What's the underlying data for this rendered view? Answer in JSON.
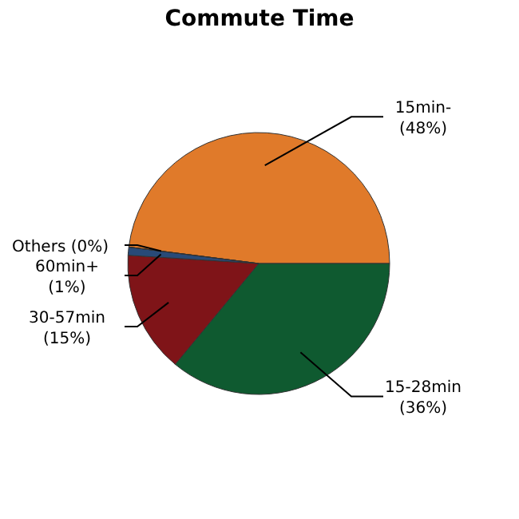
{
  "chart_data": {
    "type": "pie",
    "title": "Commute Time",
    "categories": [
      "15min-",
      "15-28min",
      "30-57min",
      "60min+",
      "Others"
    ],
    "values": [
      48,
      36,
      15,
      1,
      0
    ],
    "value_labels": [
      "(48%)",
      "(36%)",
      "(15%)",
      "(1%)",
      "(0%)"
    ],
    "colors": [
      "#e07a2a",
      "#0f5a30",
      "#7f1418",
      "#284a78",
      "#5a6a80"
    ]
  }
}
